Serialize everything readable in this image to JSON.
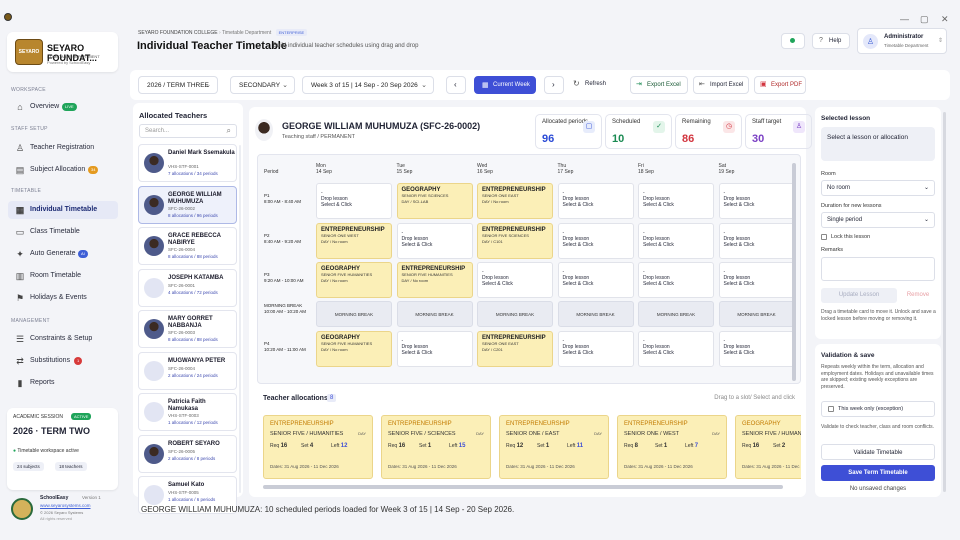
{
  "window": {
    "min": "—",
    "max": "▢",
    "close": "✕"
  },
  "brand": {
    "crest": "SEYARO",
    "name": "SEYARO FOUNDAT...",
    "dept": "• TIMETABLE DEPARTMENT",
    "powered": "Powered by SchoolEasy"
  },
  "nav": {
    "workspace": "WORKSPACE",
    "overview": "Overview",
    "overview_badge": "LIVE",
    "staff_setup": "STAFF SETUP",
    "teacher_registration": "Teacher Registration",
    "subject_allocation": "Subject Allocation",
    "subject_badge": "34",
    "timetable": "TIMETABLE",
    "individual": "Individual Timetable",
    "class": "Class Timetable",
    "auto": "Auto Generate",
    "auto_badge": "AI",
    "room": "Room Timetable",
    "holidays": "Holidays & Events",
    "management": "MANAGEMENT",
    "constraints": "Constraints & Setup",
    "substitutions": "Substitutions",
    "subs_badge": "1",
    "reports": "Reports"
  },
  "session": {
    "label": "ACADEMIC SESSION",
    "active": "ACTIVE",
    "term": "2026 · TERM TWO",
    "status": "Timetable workspace active",
    "subjects": "24 subjects",
    "teachers": "18 teachers"
  },
  "footer": {
    "app": "SchoolEasy",
    "version": "Version 1",
    "url": "www.seyarosystems.com",
    "copyright": "© 2026 Seyaro Systems",
    "rights": "All rights reserved"
  },
  "header": {
    "school": "SEYARO FOUNDATION COLLEGE",
    "dept": "Timetable Department",
    "edition": "ENTERPRISE",
    "title": "Individual Teacher Timetable",
    "subtitle": "Build individual teacher schedules using drag and drop",
    "help": "Help",
    "user": "Administrator",
    "user_dept": "Timetable Department"
  },
  "toolbar": {
    "term": "2026 / TERM THREE",
    "level": "SECONDARY",
    "week": "Week 3 of 15 | 14 Sep - 20 Sep 2026",
    "current": "Current Week",
    "refresh": "Refresh",
    "export_excel": "Export Excel",
    "import_excel": "Import Excel",
    "export_pdf": "Export PDF"
  },
  "teachers_panel": {
    "title": "Allocated Teachers",
    "search_placeholder": "Search..."
  },
  "teachers": [
    {
      "name": "Daniel Mark Ssemakula",
      "code": "VHS-STF-0001",
      "load": "7 allocations / 34 periods",
      "photo": true
    },
    {
      "name": "GEORGE WILLIAM MUHUMUZA",
      "code": "SFC-26-0002",
      "load": "8 allocations / 96 periods",
      "photo": true
    },
    {
      "name": "GRACE REBECCA NABIRYE",
      "code": "SFC-26-0004",
      "load": "8 allocations / 88 periods",
      "photo": true
    },
    {
      "name": "JOSEPH KATAMBA",
      "code": "SFC-26-0001",
      "load": "4 allocations / 72 periods",
      "photo": false
    },
    {
      "name": "MARY GORRET NABBANJA",
      "code": "SFC-26-0003",
      "load": "8 allocations / 88 periods",
      "photo": true
    },
    {
      "name": "MUGWANYA PETER",
      "code": "SFC-26-0004",
      "load": "2 allocations / 24 periods",
      "photo": false
    },
    {
      "name": "Patricia Faith Namukasa",
      "code": "VHS-STF-0003",
      "load": "1 allocations / 12 periods",
      "photo": false
    },
    {
      "name": "ROBERT SEYARO",
      "code": "SFC-26-0005",
      "load": "2 allocations / 8 periods",
      "photo": true
    },
    {
      "name": "Samuel Kato",
      "code": "VHS-STF-0005",
      "load": "1 allocations / 6 periods",
      "photo": false
    }
  ],
  "teacher": {
    "name": "GEORGE WILLIAM MUHUMUZA (SFC-26-0002)",
    "role": "Teaching staff / PERMANENT"
  },
  "stats": [
    {
      "label": "Allocated periods",
      "value": "96",
      "icon": "▢",
      "color": "#2b4bd6",
      "bg": "#e7ecfb"
    },
    {
      "label": "Scheduled",
      "value": "10",
      "icon": "✓",
      "color": "#1a8a52",
      "bg": "#e3f5ea"
    },
    {
      "label": "Remaining",
      "value": "86",
      "icon": "◷",
      "color": "#d2353f",
      "bg": "#fbe6e7"
    },
    {
      "label": "Staff target",
      "value": "30",
      "icon": "♙",
      "color": "#7a3fc4",
      "bg": "#efe6fb"
    }
  ],
  "grid": {
    "period_header": "Period",
    "days": [
      {
        "d": "Mon",
        "dt": "14 Sep"
      },
      {
        "d": "Tue",
        "dt": "15 Sep"
      },
      {
        "d": "Wed",
        "dt": "16 Sep"
      },
      {
        "d": "Thu",
        "dt": "17 Sep"
      },
      {
        "d": "Fri",
        "dt": "18 Sep"
      },
      {
        "d": "Sat",
        "dt": "19 Sep"
      }
    ],
    "periods": [
      {
        "p": "P1",
        "t": "8:00 AM - 8:40 AM"
      },
      {
        "p": "P2",
        "t": "8:40 AM - 9:20 AM"
      },
      {
        "p": "P3",
        "t": "9:20 AM - 10:00 AM"
      },
      {
        "p": "MORNING BREAK",
        "t": "10:00 AM - 10:20 AM"
      },
      {
        "p": "P4",
        "t": "10:20 AM - 11:00 AM"
      }
    ],
    "drop_title": "-",
    "drop_l1": "Drop lesson",
    "drop_l2": "Select & Click",
    "break_label": "MORNING BREAK",
    "lessons": {
      "0_0": {
        "s": "-",
        "c": "Drop lesson",
        "r": "Select & Click",
        "empty": true
      },
      "0_1": {
        "s": "GEOGRAPHY",
        "c": "SENIOR FIVE SCIENCES",
        "r": "DAY / SCI-LAB"
      },
      "0_2": {
        "s": "ENTREPRENEURSHIP",
        "c": "SENIOR ONE EAST",
        "r": "DAY / No room"
      },
      "1_0": {
        "s": "ENTREPRENEURSHIP",
        "c": "SENIOR ONE WEST",
        "r": "DAY / No room"
      },
      "1_2": {
        "s": "ENTREPRENEURSHIP",
        "c": "SENIOR FIVE SCIENCES",
        "r": "DAY / C101"
      },
      "2_0": {
        "s": "GEOGRAPHY",
        "c": "SENIOR FIVE HUMANITIES",
        "r": "DAY / No room"
      },
      "2_1": {
        "s": "ENTREPRENEURSHIP",
        "c": "SENIOR FIVE HUMANITIES",
        "r": "DAY / No room"
      },
      "4_0": {
        "s": "GEOGRAPHY",
        "c": "SENIOR FIVE HUMANITIES",
        "r": "DAY / No room"
      },
      "4_2": {
        "s": "ENTREPRENEURSHIP",
        "c": "SENIOR ONE EAST",
        "r": "DAY / C201"
      }
    }
  },
  "allocations": {
    "title": "Teacher allocations",
    "count": "8",
    "hint": "Drag to a slot/ Select and click",
    "items": [
      {
        "s": "ENTREPRENEURSHIP",
        "c": "SENIOR FIVE / HUMANITIES",
        "d": "DAY",
        "req": "16",
        "set": "4",
        "left": "12",
        "dates": "Dates: 31 Aug 2026 - 11 Dec 2026"
      },
      {
        "s": "ENTREPRENEURSHIP",
        "c": "SENIOR FIVE / SCIENCES",
        "d": "DAY",
        "req": "16",
        "set": "1",
        "left": "15",
        "dates": "Dates: 31 Aug 2026 - 11 Dec 2026"
      },
      {
        "s": "ENTREPRENEURSHIP",
        "c": "SENIOR ONE / EAST",
        "d": "DAY",
        "req": "12",
        "set": "1",
        "left": "11",
        "dates": "Dates: 31 Aug 2026 - 11 Dec 2026"
      },
      {
        "s": "ENTREPRENEURSHIP",
        "c": "SENIOR ONE / WEST",
        "d": "DAY",
        "req": "8",
        "set": "1",
        "left": "7",
        "dates": "Dates: 31 Aug 2026 - 11 Dec 2026"
      },
      {
        "s": "GEOGRAPHY",
        "c": "SENIOR FIVE / HUMAN",
        "d": "",
        "req": "16",
        "set": "2",
        "left": "14",
        "dates": "Dates: 31 Aug 2026 - 11 Dec 2026"
      }
    ],
    "req": "Req",
    "set": "Set",
    "left": "Left"
  },
  "selected": {
    "title": "Selected lesson",
    "prompt": "Select a lesson or allocation",
    "room_label": "Room",
    "room_value": "No room",
    "duration_label": "Duration for new lessons",
    "duration_value": "Single period",
    "lock": "Lock this lesson",
    "remarks": "Remarks",
    "update": "Update Lesson",
    "remove": "Remove",
    "help": "Drag a timetable card to move it. Unlock and save a locked lesson before moving or removing it."
  },
  "validation": {
    "title": "Validation & save",
    "desc": "Repeats weekly within the term, allocation and employment dates. Holidays and unavailable times are skipped; existing weekly exceptions are preserved.",
    "exception": "This week only (exception)",
    "check": "Validate to check teacher, class and room conflicts.",
    "validate": "Validate Timetable",
    "save": "Save Term Timetable",
    "changes": "No unsaved changes"
  },
  "status": "GEORGE WILLIAM MUHUMUZA: 10 scheduled periods loaded for Week 3 of 15 | 14 Sep - 20 Sep 2026."
}
